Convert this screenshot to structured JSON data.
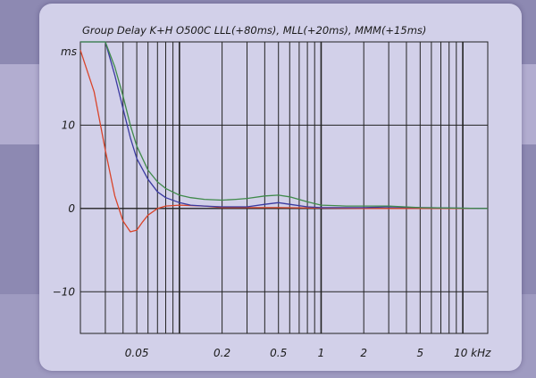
{
  "chart_data": {
    "type": "line",
    "title": "Group Delay K+H O500C LLL(+80ms),  MLL(+20ms),  MMM(+15ms)",
    "ylabel": "ms",
    "xlabel": "",
    "x_scale": "log",
    "x_unit": "kHz",
    "xlim": [
      0.02,
      15
    ],
    "ylim": [
      -15,
      20
    ],
    "grid": true,
    "x_tick_labels": [
      {
        "value": 0.05,
        "label": "0.05"
      },
      {
        "value": 0.2,
        "label": "0.2"
      },
      {
        "value": 0.5,
        "label": "0.5"
      },
      {
        "value": 1,
        "label": "1"
      },
      {
        "value": 2,
        "label": "2"
      },
      {
        "value": 5,
        "label": "5"
      },
      {
        "value": 10,
        "label": "10 kHz"
      }
    ],
    "y_tick_labels": [
      {
        "value": 10,
        "label": "10"
      },
      {
        "value": 0,
        "label": "0"
      },
      {
        "value": -10,
        "label": "−10"
      }
    ],
    "series": [
      {
        "color": "#d9442a",
        "x": [
          0.02,
          0.025,
          0.03,
          0.035,
          0.04,
          0.045,
          0.05,
          0.055,
          0.06,
          0.07,
          0.08,
          0.1,
          0.15,
          0.2,
          0.3,
          0.5,
          1,
          2,
          5,
          15
        ],
        "y": [
          19,
          14,
          7,
          1.5,
          -1.5,
          -2.8,
          -2.6,
          -1.6,
          -0.8,
          0,
          0.3,
          0.4,
          0.3,
          0.1,
          0.1,
          0.1,
          0.05,
          0,
          0,
          0
        ]
      },
      {
        "color": "#3a3aa0",
        "x": [
          0.02,
          0.03,
          0.035,
          0.04,
          0.045,
          0.05,
          0.06,
          0.07,
          0.08,
          0.1,
          0.12,
          0.15,
          0.2,
          0.3,
          0.4,
          0.5,
          0.6,
          0.8,
          1,
          2,
          3,
          5,
          15
        ],
        "y": [
          20,
          20,
          16,
          12,
          8.5,
          6,
          3.5,
          2,
          1.3,
          0.7,
          0.4,
          0.3,
          0.2,
          0.2,
          0.5,
          0.7,
          0.5,
          0.2,
          0.1,
          0.1,
          0.2,
          0.1,
          0
        ]
      },
      {
        "color": "#3f8a4a",
        "x": [
          0.02,
          0.03,
          0.035,
          0.04,
          0.045,
          0.05,
          0.06,
          0.07,
          0.08,
          0.1,
          0.12,
          0.15,
          0.2,
          0.25,
          0.3,
          0.4,
          0.5,
          0.6,
          0.8,
          1,
          1.5,
          2,
          3,
          5,
          15
        ],
        "y": [
          20,
          20,
          17,
          13.5,
          10,
          7.5,
          4.6,
          3.2,
          2.4,
          1.6,
          1.3,
          1.1,
          1,
          1.1,
          1.2,
          1.5,
          1.6,
          1.4,
          0.8,
          0.4,
          0.3,
          0.3,
          0.3,
          0.1,
          0
        ]
      }
    ]
  }
}
